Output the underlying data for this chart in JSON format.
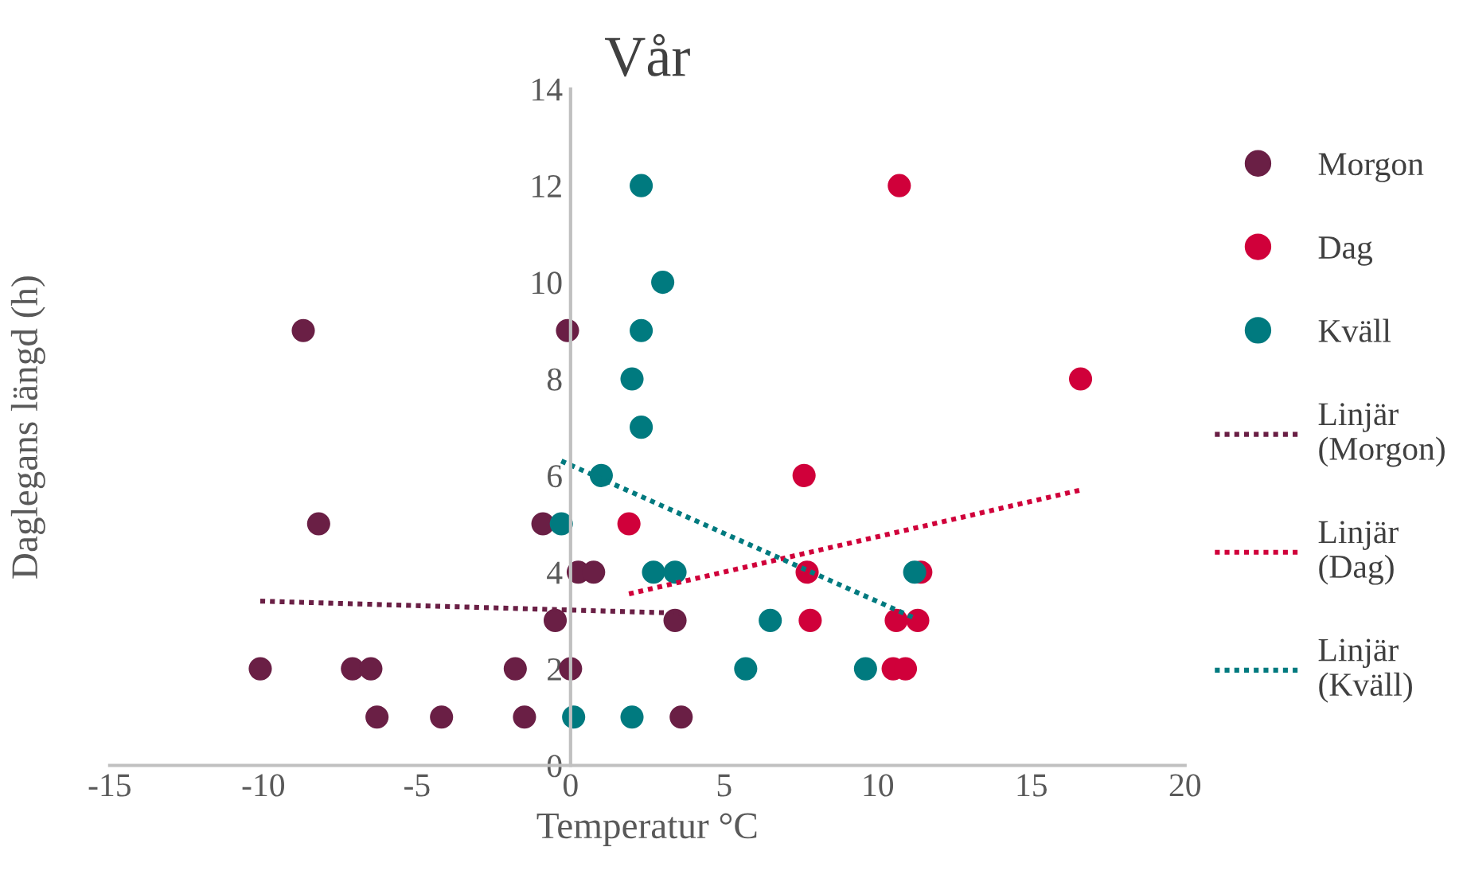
{
  "chart_data": {
    "type": "scatter",
    "title": "Vår",
    "xlabel": "Temperatur °C",
    "ylabel": "Daglegans längd (h)",
    "xlim": [
      -15,
      20
    ],
    "xticks": [
      -15,
      -10,
      -5,
      0,
      5,
      10,
      15,
      20
    ],
    "ylim": [
      0,
      14
    ],
    "yticks": [
      0,
      2,
      4,
      6,
      8,
      10,
      12,
      14
    ],
    "grid": false,
    "legend": "right",
    "marker": "circle",
    "series": [
      {
        "name": "Morgon",
        "color": "#6a1f45",
        "x": [
          -8.7,
          -0.1,
          -8.2,
          -0.9,
          0.25,
          0.75,
          -0.5,
          3.4,
          -10.1,
          -7.1,
          -6.5,
          -1.8,
          0,
          -6.3,
          -4.2,
          -1.5,
          3.6
        ],
        "values": [
          9,
          9,
          5,
          5,
          4,
          4,
          3,
          3,
          2,
          2,
          2,
          2,
          2,
          1,
          1,
          1,
          1
        ]
      },
      {
        "name": "Dag",
        "color": "#d0003a",
        "x": [
          10.7,
          16.6,
          7.6,
          1.9,
          7.7,
          11.4,
          7.8,
          10.6,
          11.3,
          10.5,
          10.9
        ],
        "values": [
          12,
          8,
          6,
          5,
          4,
          4,
          3,
          3,
          3,
          2,
          2
        ]
      },
      {
        "name": "Kväll",
        "color": "#007a7f",
        "x": [
          2.3,
          3.0,
          2.3,
          2.0,
          2.3,
          1.0,
          -0.3,
          2.7,
          3.4,
          11.2,
          6.5,
          5.7,
          9.6,
          0.1,
          2.0
        ],
        "values": [
          12,
          10,
          9,
          8,
          7,
          6,
          5,
          4,
          4,
          4,
          3,
          2,
          2,
          1,
          1
        ]
      },
      {
        "name": "Linjär (Morgon)",
        "type": "line",
        "line_style": "dotted",
        "marker": "none",
        "color": "#6a1f45",
        "x": [
          -10.1,
          3.6
        ],
        "values": [
          3.4,
          3.15
        ]
      },
      {
        "name": "Linjär (Dag)",
        "type": "line",
        "line_style": "dotted",
        "marker": "none",
        "color": "#d0003a",
        "x": [
          1.9,
          16.6
        ],
        "values": [
          3.55,
          5.7
        ]
      },
      {
        "name": "Linjär (Kväll)",
        "type": "line",
        "line_style": "dotted",
        "marker": "none",
        "color": "#007a7f",
        "x": [
          -0.3,
          11.2
        ],
        "values": [
          6.3,
          3.05
        ]
      }
    ]
  }
}
